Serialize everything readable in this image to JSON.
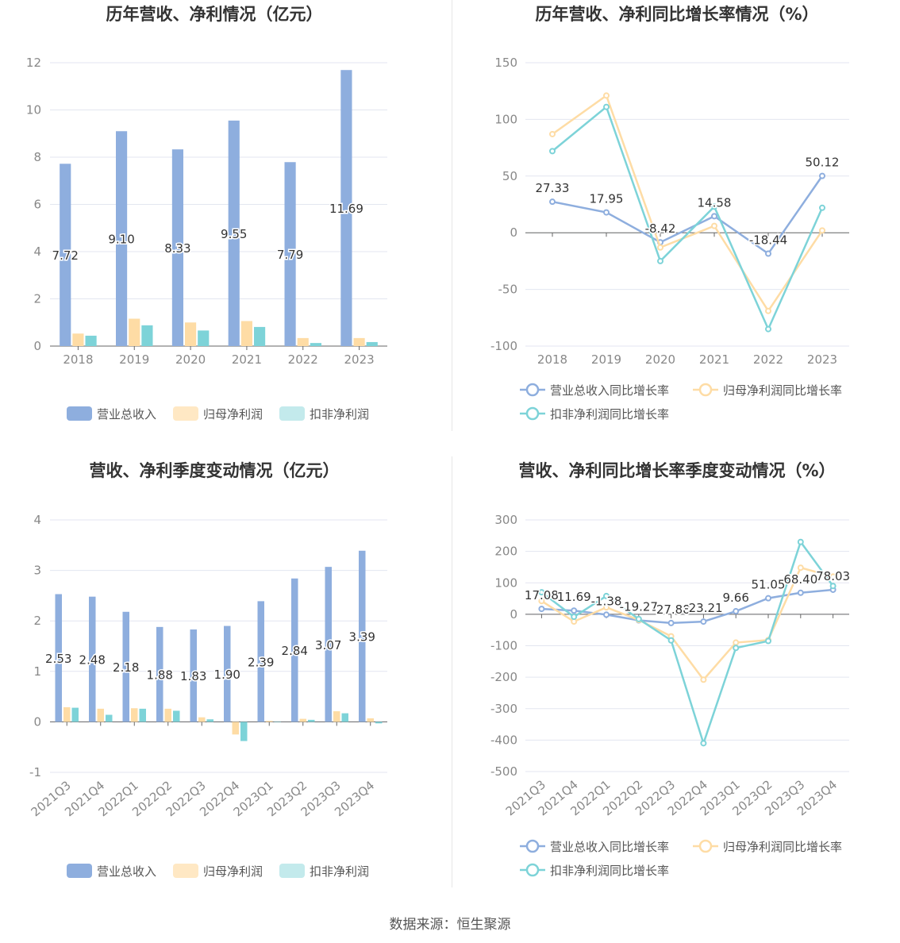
{
  "source": "数据来源：恒生聚源",
  "colors": {
    "revenue": "#8eaede",
    "net_profit": "#fedca5",
    "deducted_profit": "#7dd3d8",
    "revenue_legend": "#8eaede",
    "net_profit_legend": "#ffe8c4",
    "deducted_profit_legend": "#c3eaec",
    "grid": "#e3e6f0",
    "axis": "#666666"
  },
  "chart_data": [
    {
      "type": "bar",
      "title": "历年营收、净利情况（亿元）",
      "categories": [
        "2018",
        "2019",
        "2020",
        "2021",
        "2022",
        "2023"
      ],
      "ylim": [
        0,
        12
      ],
      "yticks": [
        0,
        2,
        4,
        6,
        8,
        10,
        12
      ],
      "grid": true,
      "legend_position": "bottom",
      "series": [
        {
          "name": "营业总收入",
          "color_key": "revenue",
          "values": [
            7.72,
            9.1,
            8.33,
            9.55,
            7.79,
            11.69
          ],
          "labels": [
            "7.72",
            "9.10",
            "8.33",
            "9.55",
            "7.79",
            "11.69"
          ]
        },
        {
          "name": "归母净利润",
          "color_key": "net_profit",
          "values": [
            0.53,
            1.16,
            1.0,
            1.06,
            0.34,
            0.34
          ]
        },
        {
          "name": "扣非净利润",
          "color_key": "deducted_profit",
          "values": [
            0.44,
            0.88,
            0.66,
            0.81,
            0.13,
            0.17
          ]
        }
      ]
    },
    {
      "type": "line",
      "title": "历年营收、净利同比增长率情况（%）",
      "categories": [
        "2018",
        "2019",
        "2020",
        "2021",
        "2022",
        "2023"
      ],
      "ylim": [
        -100,
        150
      ],
      "yticks": [
        -100,
        -50,
        0,
        50,
        100,
        150
      ],
      "grid": true,
      "legend_position": "bottom",
      "series": [
        {
          "name": "营业总收入同比增长率",
          "color_key": "revenue",
          "values": [
            27.33,
            17.95,
            -8.42,
            14.58,
            -18.44,
            50.12
          ],
          "labels": [
            "27.33",
            "17.95",
            "-8.42",
            "14.58",
            "-18.44",
            "50.12"
          ]
        },
        {
          "name": "归母净利润同比增长率",
          "color_key": "net_profit",
          "values": [
            87,
            121,
            -13,
            6,
            -69,
            2
          ]
        },
        {
          "name": "扣非净利润同比增长率",
          "color_key": "deducted_profit",
          "values": [
            72,
            111,
            -25,
            23,
            -85,
            22
          ]
        }
      ]
    },
    {
      "type": "bar",
      "title": "营收、净利季度变动情况（亿元）",
      "categories": [
        "2021Q3",
        "2021Q4",
        "2022Q1",
        "2022Q2",
        "2022Q3",
        "2022Q4",
        "2023Q1",
        "2023Q2",
        "2023Q3",
        "2023Q4"
      ],
      "ylim": [
        -1,
        4
      ],
      "yticks": [
        -1,
        0,
        1,
        2,
        3,
        4
      ],
      "grid": true,
      "legend_position": "bottom",
      "series": [
        {
          "name": "营业总收入",
          "color_key": "revenue",
          "values": [
            2.53,
            2.48,
            2.18,
            1.88,
            1.83,
            1.9,
            2.39,
            2.84,
            3.07,
            3.39
          ],
          "labels": [
            "2.53",
            "2.48",
            "2.18",
            "1.88",
            "1.83",
            "1.90",
            "2.39",
            "2.84",
            "3.07",
            "3.39"
          ]
        },
        {
          "name": "归母净利润",
          "color_key": "net_profit",
          "values": [
            0.29,
            0.26,
            0.27,
            0.26,
            0.09,
            -0.25,
            0.02,
            0.06,
            0.21,
            0.07
          ]
        },
        {
          "name": "扣非净利润",
          "color_key": "deducted_profit",
          "values": [
            0.28,
            0.14,
            0.26,
            0.22,
            0.05,
            -0.38,
            0.0,
            0.04,
            0.17,
            -0.03
          ]
        }
      ]
    },
    {
      "type": "line",
      "title": "营收、净利同比增长率季度变动情况（%）",
      "categories": [
        "2021Q3",
        "2021Q4",
        "2022Q1",
        "2022Q2",
        "2022Q3",
        "2022Q4",
        "2023Q1",
        "2023Q2",
        "2023Q3",
        "2023Q4"
      ],
      "ylim": [
        -500,
        300
      ],
      "yticks": [
        -500,
        -400,
        -300,
        -200,
        -100,
        0,
        100,
        200,
        300
      ],
      "grid": true,
      "legend_position": "bottom",
      "series": [
        {
          "name": "营业总收入同比增长率",
          "color_key": "revenue",
          "values": [
            17.08,
            11.69,
            -1.38,
            -19.27,
            -27.88,
            -23.21,
            9.66,
            51.05,
            68.4,
            78.03
          ],
          "labels": [
            "17.08",
            "11.69",
            "-1.38",
            "-19.27",
            "-27.88",
            "-23.21",
            "9.66",
            "51.05",
            "68.40",
            "78.03"
          ]
        },
        {
          "name": "归母净利润同比增长率",
          "color_key": "net_profit",
          "values": [
            42,
            -23,
            22,
            -18,
            -70,
            -208,
            -90,
            -82,
            148,
            120
          ]
        },
        {
          "name": "扣非净利润同比增长率",
          "color_key": "deducted_profit",
          "values": [
            70,
            -8,
            58,
            -15,
            -83,
            -410,
            -107,
            -85,
            230,
            90
          ]
        }
      ]
    }
  ]
}
